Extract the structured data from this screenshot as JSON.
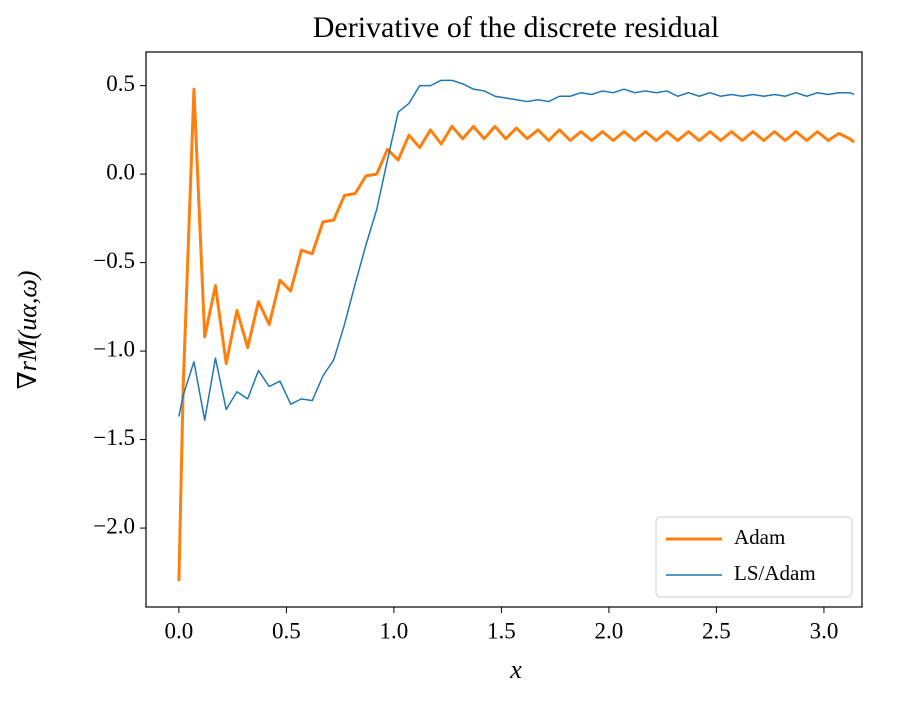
{
  "chart_data": {
    "type": "line",
    "title": "Derivative of the discrete residual",
    "x_label": "x",
    "y_label": "∇rM(uα,ω)",
    "x": [
      0,
      0.02,
      0.07,
      0.12,
      0.17,
      0.22,
      0.27,
      0.32,
      0.37,
      0.42,
      0.47,
      0.52,
      0.57,
      0.62,
      0.67,
      0.72,
      0.77,
      0.82,
      0.87,
      0.92,
      0.97,
      1.02,
      1.07,
      1.12,
      1.17,
      1.22,
      1.27,
      1.32,
      1.37,
      1.42,
      1.47,
      1.52,
      1.57,
      1.62,
      1.67,
      1.72,
      1.77,
      1.82,
      1.87,
      1.92,
      1.97,
      2.02,
      2.07,
      2.12,
      2.17,
      2.22,
      2.27,
      2.32,
      2.37,
      2.42,
      2.47,
      2.52,
      2.57,
      2.62,
      2.67,
      2.72,
      2.77,
      2.82,
      2.87,
      2.92,
      2.97,
      3.02,
      3.07,
      3.12,
      3.14
    ],
    "series": [
      {
        "name": "Adam",
        "color": "#ff7f0e",
        "width": 3,
        "values": [
          -2.3,
          -1.2,
          0.48,
          -0.92,
          -0.63,
          -1.07,
          -0.77,
          -0.98,
          -0.72,
          -0.85,
          -0.6,
          -0.66,
          -0.43,
          -0.45,
          -0.27,
          -0.26,
          -0.12,
          -0.11,
          -0.01,
          0.0,
          0.14,
          0.08,
          0.22,
          0.15,
          0.25,
          0.17,
          0.27,
          0.2,
          0.27,
          0.2,
          0.27,
          0.2,
          0.26,
          0.2,
          0.25,
          0.19,
          0.25,
          0.19,
          0.24,
          0.19,
          0.24,
          0.19,
          0.24,
          0.19,
          0.24,
          0.19,
          0.24,
          0.19,
          0.24,
          0.19,
          0.24,
          0.19,
          0.24,
          0.19,
          0.24,
          0.19,
          0.24,
          0.19,
          0.24,
          0.19,
          0.24,
          0.19,
          0.23,
          0.2,
          0.18
        ]
      },
      {
        "name": "LS/Adam",
        "color": "#1f77b4",
        "width": 1.5,
        "values": [
          -1.37,
          -1.25,
          -1.06,
          -1.39,
          -1.04,
          -1.33,
          -1.23,
          -1.27,
          -1.11,
          -1.2,
          -1.17,
          -1.3,
          -1.27,
          -1.28,
          -1.14,
          -1.05,
          -0.85,
          -0.62,
          -0.4,
          -0.2,
          0.08,
          0.35,
          0.4,
          0.5,
          0.5,
          0.53,
          0.53,
          0.51,
          0.48,
          0.47,
          0.44,
          0.43,
          0.42,
          0.41,
          0.42,
          0.41,
          0.44,
          0.44,
          0.46,
          0.45,
          0.47,
          0.46,
          0.48,
          0.46,
          0.47,
          0.46,
          0.47,
          0.44,
          0.46,
          0.44,
          0.46,
          0.44,
          0.45,
          0.44,
          0.45,
          0.44,
          0.45,
          0.44,
          0.46,
          0.44,
          0.46,
          0.45,
          0.46,
          0.46,
          0.45
        ]
      }
    ],
    "xlim": [
      -0.153,
      3.177
    ],
    "ylim": [
      -2.446,
      0.69
    ],
    "xticks": [
      {
        "value": 0,
        "label": "0.0"
      },
      {
        "value": 0.5,
        "label": "0.5"
      },
      {
        "value": 1,
        "label": "1.0"
      },
      {
        "value": 1.5,
        "label": "1.5"
      },
      {
        "value": 2,
        "label": "2.0"
      },
      {
        "value": 2.5,
        "label": "2.5"
      },
      {
        "value": 3,
        "label": "3.0"
      }
    ],
    "yticks": [
      {
        "value": -2,
        "label": "−2.0"
      },
      {
        "value": -1.5,
        "label": "−1.5"
      },
      {
        "value": -1,
        "label": "−1.0"
      },
      {
        "value": -0.5,
        "label": "−0.5"
      },
      {
        "value": 0,
        "label": "0.0"
      },
      {
        "value": 0.5,
        "label": "0.5"
      }
    ],
    "legend": "lower right",
    "grid": false
  }
}
